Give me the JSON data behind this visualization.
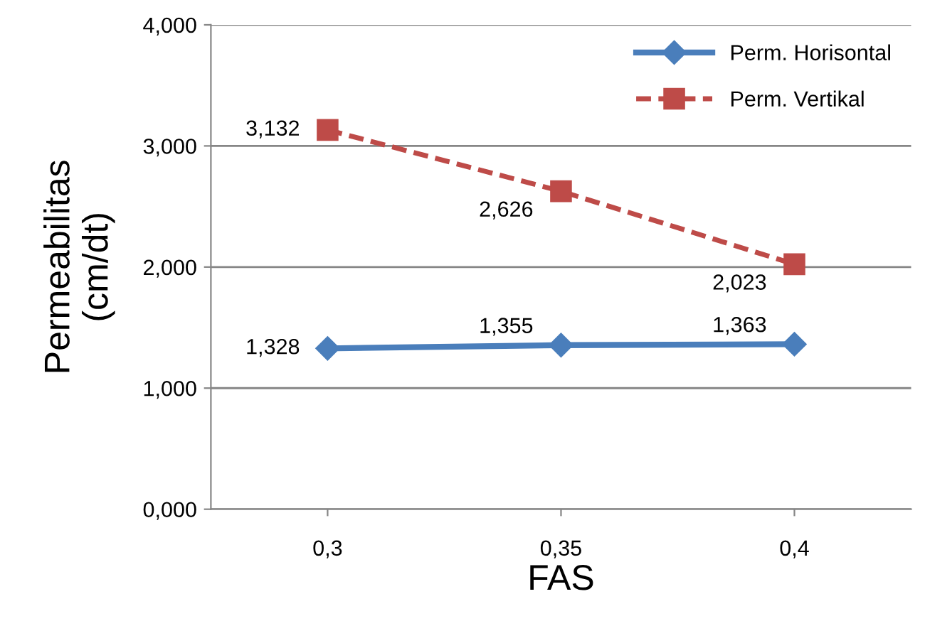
{
  "chart_data": {
    "type": "line",
    "xlabel": "FAS",
    "ylabel": "Permeabilitas\n(cm/dt)",
    "categories": [
      "0,3",
      "0,35",
      "0,4"
    ],
    "series": [
      {
        "name": "Perm. Horisontal",
        "color": "#4a7ebb",
        "values": [
          1.328,
          1.355,
          1.363
        ],
        "value_labels": [
          "1,328",
          "1,355",
          "1,363"
        ],
        "marker": "diamond",
        "line_style": "solid"
      },
      {
        "name": "Perm. Vertikal",
        "color": "#be4b48",
        "values": [
          3.132,
          2.626,
          2.023
        ],
        "value_labels": [
          "3,132",
          "2,626",
          "2,023"
        ],
        "marker": "square",
        "line_style": "dashed"
      }
    ],
    "ylim": [
      0,
      4
    ],
    "yticks": [
      {
        "value": 0,
        "label": "0,000"
      },
      {
        "value": 1,
        "label": "1,000"
      },
      {
        "value": 2,
        "label": "2,000"
      },
      {
        "value": 3,
        "label": "3,000"
      },
      {
        "value": 4,
        "label": "4,000"
      }
    ],
    "grid": "y",
    "legend": "top right"
  }
}
